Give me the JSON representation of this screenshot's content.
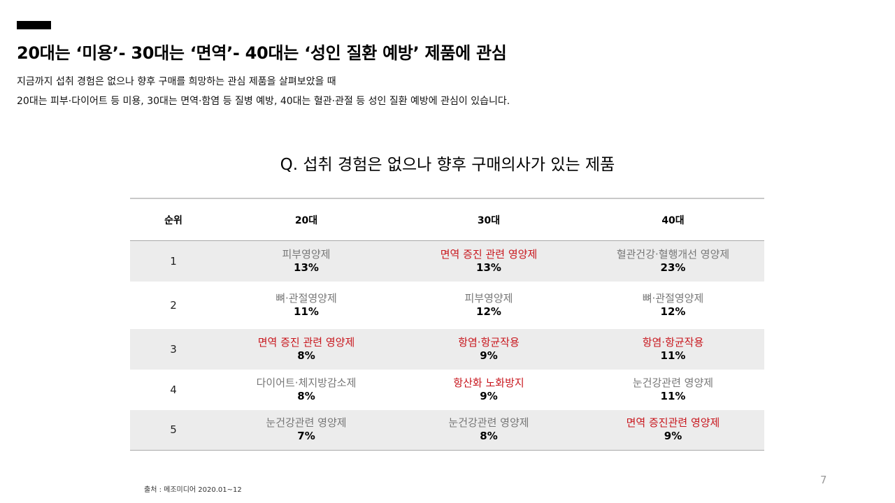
{
  "title": "20대는 ‘미용’- 30대는 ‘면역’- 40대는 ‘성인 질환 예방’ 제품에 관심",
  "description": [
    "지금까지 섭취 경험은 없으나 향후 구매를 희망하는 관심 제품을 살펴보았을 때",
    "20대는 피부·다이어트 등 미용, 30대는 면역·함염 등 질병 예방, 40대는 혈관·관절 등 성인 질환 예방에 관심이 있습니다."
  ],
  "question": "Q. 섭취 경험은 없으나 향후 구매의사가 있는 제품",
  "table": {
    "headers": [
      "순위",
      "20대",
      "30대",
      "40대"
    ],
    "rows": [
      {
        "rank": "1",
        "cells": [
          {
            "name": "피부영양제",
            "pct": "13%",
            "highlight": false
          },
          {
            "name": "면역 증진 관련 영양제",
            "pct": "13%",
            "highlight": true
          },
          {
            "name": "혈관건강·혈행개선 영양제",
            "pct": "23%",
            "highlight": false
          }
        ]
      },
      {
        "rank": "2",
        "cells": [
          {
            "name": "뼈·관절영양제",
            "pct": "11%",
            "highlight": false
          },
          {
            "name": "피부영양제",
            "pct": "12%",
            "highlight": false
          },
          {
            "name": "뼈·관절영양제",
            "pct": "12%",
            "highlight": false
          }
        ]
      },
      {
        "rank": "3",
        "cells": [
          {
            "name": "면역 증진 관련 영양제",
            "pct": "8%",
            "highlight": true
          },
          {
            "name": "항염·항균작용",
            "pct": "9%",
            "highlight": true
          },
          {
            "name": "항염·항균작용",
            "pct": "11%",
            "highlight": true
          }
        ]
      },
      {
        "rank": "4",
        "cells": [
          {
            "name": "다이어트·체지방감소제",
            "pct": "8%",
            "highlight": false
          },
          {
            "name": "항산화 노화방지",
            "pct": "9%",
            "highlight": true
          },
          {
            "name": "눈건강관련 영양제",
            "pct": "11%",
            "highlight": false
          }
        ]
      },
      {
        "rank": "5",
        "cells": [
          {
            "name": "눈건강관련 영양제",
            "pct": "7%",
            "highlight": false
          },
          {
            "name": "눈건강관련 영양제",
            "pct": "8%",
            "highlight": false
          },
          {
            "name": "면역 증진관련 영양제",
            "pct": "9%",
            "highlight": true
          }
        ]
      }
    ]
  },
  "source": "출처 : 메조미디어 2020.01~12",
  "page_number": "7",
  "colors": {
    "highlight": "#c8161d",
    "row_shade": "#ececec",
    "muted_text": "#777777"
  }
}
